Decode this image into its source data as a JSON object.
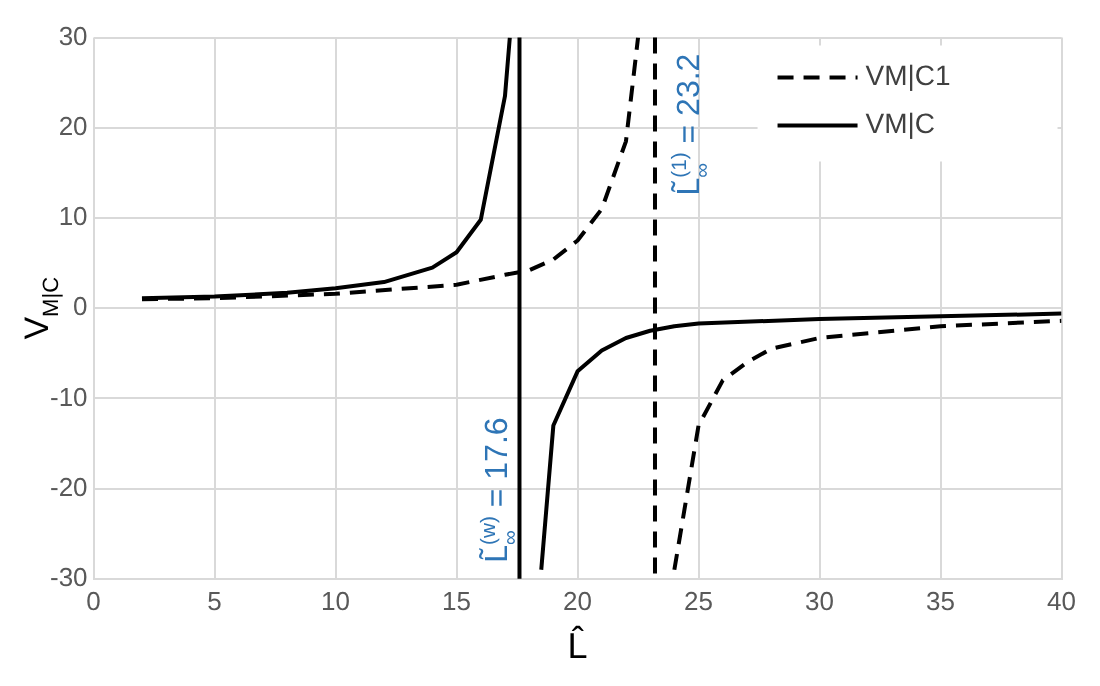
{
  "chart_data": {
    "type": "line",
    "xlabel": "L̂",
    "ylabel": "V$_{M|C}$",
    "xlim": [
      0,
      40
    ],
    "xticks": [
      0,
      5,
      10,
      15,
      20,
      25,
      30,
      35,
      40
    ],
    "ylim": [
      -30,
      30
    ],
    "yticks": [
      -30,
      -20,
      -10,
      0,
      10,
      20,
      30
    ],
    "grid": true,
    "legend": "top right",
    "marker": "none",
    "series": [
      {
        "name": "VM|C1",
        "color": "#000000",
        "line_style": "dashed",
        "x": [
          2,
          5,
          10,
          15,
          17,
          18,
          19,
          20,
          21,
          22,
          22.5,
          23.2,
          24,
          25,
          26,
          27,
          28,
          30,
          35,
          40
        ],
        "values": [
          1,
          1.1,
          1.6,
          2.6,
          3.7,
          4.2,
          5.4,
          7.5,
          11,
          18.5,
          30,
          null,
          -29,
          -13,
          -8,
          -6,
          -4.5,
          -3.3,
          -2,
          -1.4
        ]
      },
      {
        "name": "VM|C",
        "color": "#000000",
        "line_style": "solid",
        "x": [
          2,
          5,
          8,
          10,
          12,
          14,
          15,
          16,
          17,
          17.2,
          17.6,
          18.5,
          19,
          20,
          21,
          22,
          23,
          24,
          25,
          30,
          35,
          40
        ],
        "values": [
          1.1,
          1.3,
          1.7,
          2.2,
          2.9,
          4.5,
          6.2,
          9.8,
          23.5,
          30,
          null,
          -29,
          -13,
          -7,
          -4.7,
          -3.3,
          -2.5,
          -2,
          -1.7,
          -1.2,
          -0.9,
          -0.6
        ]
      }
    ],
    "ref_lines": [
      {
        "axis": "x",
        "value": 17.6,
        "label": "L̃$_{∞}$$^{(w)}$ = 17.6",
        "color": "#000000",
        "line_style": "solid"
      },
      {
        "axis": "x",
        "value": 23.2,
        "label": "L̃$_{∞}$$^{(1)}$ = 23.2",
        "color": "#000000",
        "line_style": "dashed"
      }
    ]
  }
}
